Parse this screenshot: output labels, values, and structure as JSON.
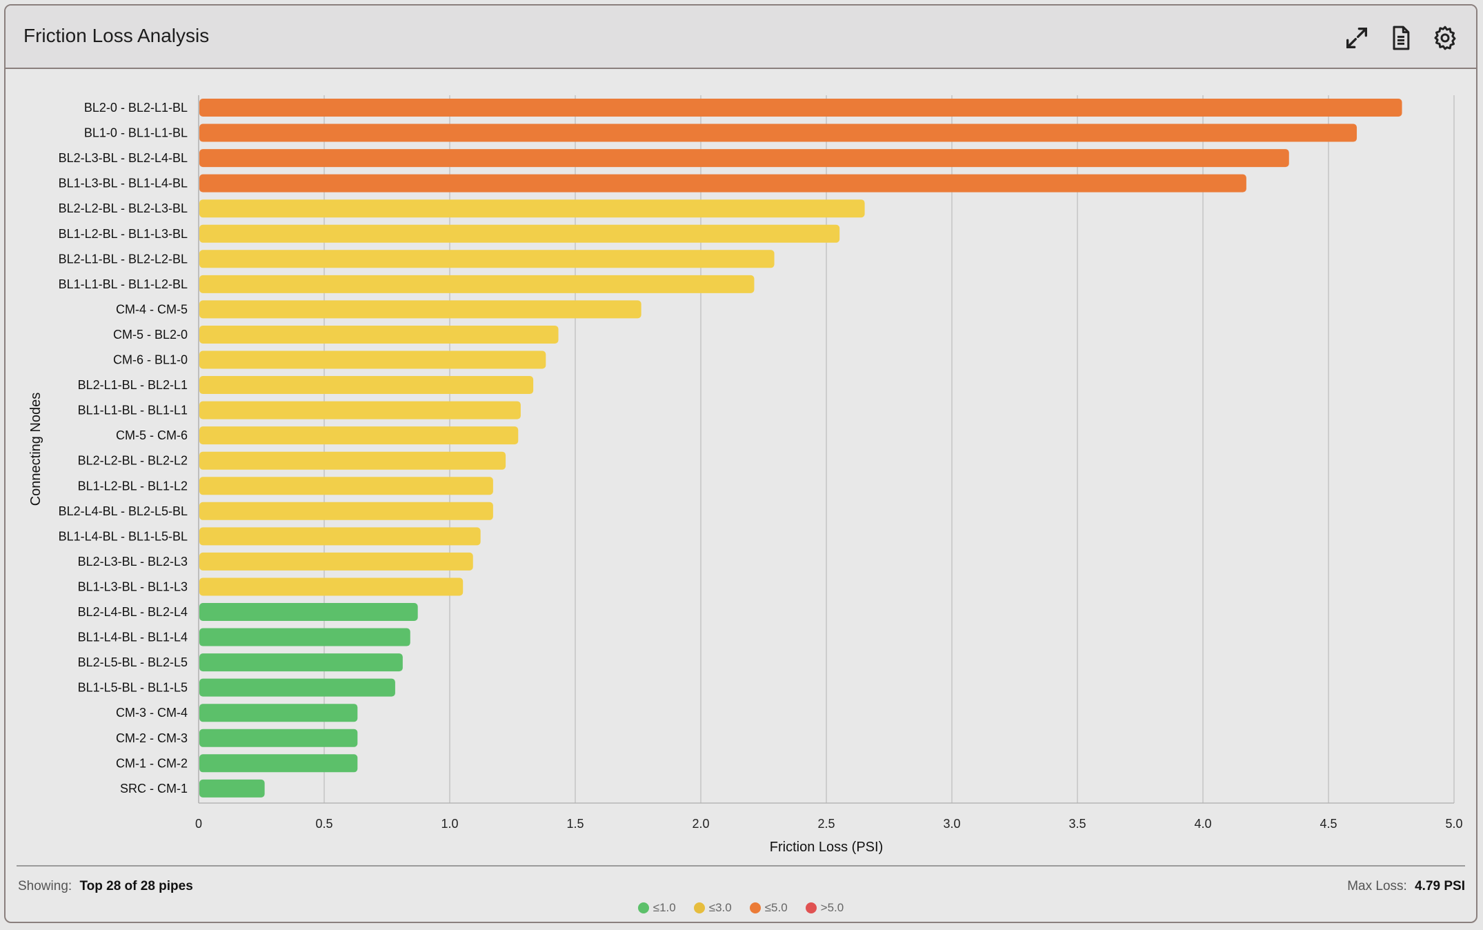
{
  "header": {
    "title": "Friction Loss Analysis",
    "icons": [
      "expand-icon",
      "document-icon",
      "gear-icon"
    ]
  },
  "chart_data": {
    "type": "bar",
    "orientation": "horizontal",
    "xlabel": "Friction Loss (PSI)",
    "ylabel": "Connecting Nodes",
    "xlim": [
      0,
      5
    ],
    "xticks": [
      "0",
      "0.5",
      "1.0",
      "1.5",
      "2.0",
      "2.5",
      "3.0",
      "3.5",
      "4.0",
      "4.5",
      "5.0"
    ],
    "grid": true,
    "categories": [
      "BL2-0 - BL2-L1-BL",
      "BL1-0 - BL1-L1-BL",
      "BL2-L3-BL - BL2-L4-BL",
      "BL1-L3-BL - BL1-L4-BL",
      "BL2-L2-BL - BL2-L3-BL",
      "BL1-L2-BL - BL1-L3-BL",
      "BL2-L1-BL - BL2-L2-BL",
      "BL1-L1-BL - BL1-L2-BL",
      "CM-4 - CM-5",
      "CM-5 - BL2-0",
      "CM-6 - BL1-0",
      "BL2-L1-BL - BL2-L1",
      "BL1-L1-BL - BL1-L1",
      "CM-5 - CM-6",
      "BL2-L2-BL - BL2-L2",
      "BL1-L2-BL - BL1-L2",
      "BL2-L4-BL - BL2-L5-BL",
      "BL1-L4-BL - BL1-L5-BL",
      "BL2-L3-BL - BL2-L3",
      "BL1-L3-BL - BL1-L3",
      "BL2-L4-BL - BL2-L4",
      "BL1-L4-BL - BL1-L4",
      "BL2-L5-BL - BL2-L5",
      "BL1-L5-BL - BL1-L5",
      "CM-3 - CM-4",
      "CM-2 - CM-3",
      "CM-1 - CM-2",
      "SRC - CM-1"
    ],
    "values": [
      4.79,
      4.61,
      4.34,
      4.17,
      2.65,
      2.55,
      2.29,
      2.21,
      1.76,
      1.43,
      1.38,
      1.33,
      1.28,
      1.27,
      1.22,
      1.17,
      1.17,
      1.12,
      1.09,
      1.05,
      0.87,
      0.84,
      0.81,
      0.78,
      0.63,
      0.63,
      0.63,
      0.26
    ],
    "thresholds": [
      {
        "label": "≤1.0",
        "max": 1.0,
        "color": "#5cc06a"
      },
      {
        "label": "≤3.0",
        "max": 3.0,
        "color": "#f2cf4a"
      },
      {
        "label": "≤5.0",
        "max": 5.0,
        "color": "#eb7b37"
      },
      {
        "label": ">5.0",
        "max": 999,
        "color": "#e05252"
      }
    ]
  },
  "footer": {
    "showing_label": "Showing:",
    "showing_value": "Top 28 of 28 pipes",
    "max_label": "Max Loss:",
    "max_value": "4.79 PSI"
  },
  "legend_colors": [
    "#5cc06a",
    "#e6bd3e",
    "#eb7b37",
    "#e05252"
  ]
}
